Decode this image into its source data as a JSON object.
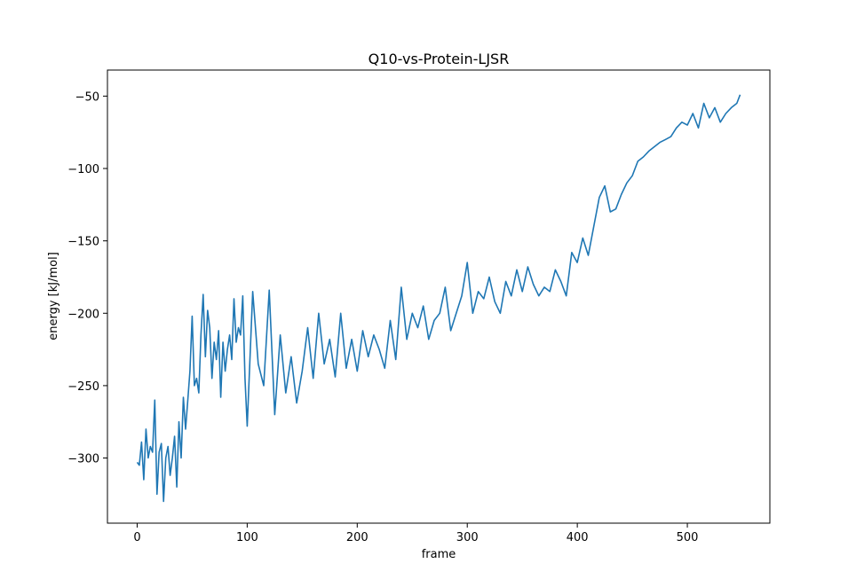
{
  "chart_data": {
    "type": "line",
    "title": "Q10-vs-Protein-LJSR",
    "xlabel": "frame",
    "ylabel": "energy [kJ/mol]",
    "xlim": [
      -27,
      575
    ],
    "ylim": [
      -345,
      -32
    ],
    "x_ticks": [
      0,
      100,
      200,
      300,
      400,
      500
    ],
    "x_tick_labels": [
      "0",
      "100",
      "200",
      "300",
      "400",
      "500"
    ],
    "y_ticks": [
      -300,
      -250,
      -200,
      -150,
      -100,
      -50
    ],
    "y_tick_labels": [
      "−300",
      "−250",
      "−200",
      "−150",
      "−100",
      "−50"
    ],
    "grid": false,
    "series": [
      {
        "color": "#1f77b4",
        "x": [
          0,
          2,
          4,
          6,
          8,
          10,
          12,
          14,
          16,
          18,
          20,
          22,
          24,
          26,
          28,
          30,
          32,
          34,
          36,
          38,
          40,
          42,
          44,
          46,
          48,
          50,
          52,
          54,
          56,
          58,
          60,
          62,
          64,
          66,
          68,
          70,
          72,
          74,
          76,
          78,
          80,
          82,
          84,
          86,
          88,
          90,
          92,
          94,
          96,
          98,
          100,
          105,
          110,
          115,
          120,
          125,
          130,
          135,
          140,
          145,
          150,
          155,
          160,
          165,
          170,
          175,
          180,
          185,
          190,
          195,
          200,
          205,
          210,
          215,
          220,
          225,
          230,
          235,
          240,
          245,
          250,
          255,
          260,
          265,
          270,
          275,
          280,
          285,
          290,
          295,
          300,
          305,
          310,
          315,
          320,
          325,
          330,
          335,
          340,
          345,
          350,
          355,
          360,
          365,
          370,
          375,
          380,
          385,
          390,
          395,
          400,
          405,
          410,
          415,
          420,
          425,
          430,
          435,
          440,
          445,
          450,
          455,
          460,
          465,
          470,
          475,
          480,
          485,
          490,
          495,
          500,
          505,
          510,
          515,
          520,
          525,
          530,
          535,
          540,
          545,
          548
        ],
        "y": [
          -303,
          -305,
          -289,
          -315,
          -280,
          -300,
          -292,
          -296,
          -260,
          -325,
          -296,
          -290,
          -330,
          -300,
          -292,
          -312,
          -300,
          -285,
          -320,
          -275,
          -300,
          -258,
          -280,
          -260,
          -240,
          -202,
          -250,
          -245,
          -255,
          -215,
          -187,
          -230,
          -198,
          -210,
          -245,
          -220,
          -232,
          -212,
          -258,
          -220,
          -240,
          -225,
          -215,
          -232,
          -190,
          -220,
          -210,
          -215,
          -188,
          -245,
          -278,
          -185,
          -235,
          -250,
          -184,
          -270,
          -215,
          -255,
          -230,
          -262,
          -240,
          -210,
          -245,
          -200,
          -235,
          -218,
          -244,
          -200,
          -238,
          -218,
          -240,
          -212,
          -230,
          -215,
          -225,
          -238,
          -205,
          -232,
          -182,
          -218,
          -200,
          -210,
          -195,
          -218,
          -205,
          -200,
          -182,
          -212,
          -200,
          -188,
          -165,
          -200,
          -185,
          -190,
          -175,
          -192,
          -200,
          -178,
          -188,
          -170,
          -185,
          -168,
          -180,
          -188,
          -182,
          -185,
          -170,
          -178,
          -188,
          -158,
          -165,
          -148,
          -160,
          -140,
          -120,
          -112,
          -130,
          -128,
          -118,
          -110,
          -105,
          -95,
          -92,
          -88,
          -85,
          -82,
          -80,
          -78,
          -72,
          -68,
          -70,
          -62,
          -72,
          -55,
          -65,
          -58,
          -68,
          -62,
          -58,
          -55,
          -49
        ]
      }
    ]
  }
}
